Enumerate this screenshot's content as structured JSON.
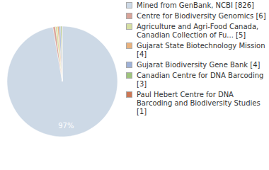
{
  "chart_data": {
    "type": "pie",
    "categories": [
      "Mined from GenBank, NCBI [826]",
      "Centre for Biodiversity Genomics [6]",
      "Agriculture and Agri-Food Canada, Canadian Collection of Fu... [5]",
      "Gujarat State Biotechnology Mission [4]",
      "Gujarat Biodiversity Gene Bank [4]",
      "Canadian Centre for DNA Barcoding [3]",
      "Paul Hebert Centre for DNA Barcoding and Biodiversity Studies [1]"
    ],
    "values": [
      97.29,
      0.71,
      0.59,
      0.47,
      0.47,
      0.35,
      0.12
    ],
    "value_labels": [
      "97%",
      null,
      null,
      null,
      null,
      null,
      null
    ],
    "data_labels": true,
    "colors": [
      "#cdd9e6",
      "#d9a499",
      "#d6dfa3",
      "#e9b27d",
      "#9fb2d8",
      "#9fc47d",
      "#cc7755"
    ],
    "legend": "right"
  }
}
